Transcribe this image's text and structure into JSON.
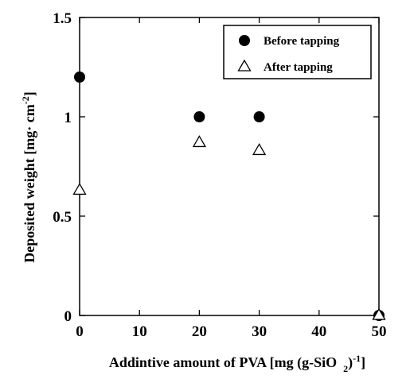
{
  "chart_data": {
    "type": "scatter",
    "title": "",
    "xlabel": "Addintive amount of PVA  [mg  (g-SiO",
    "xlabel_sub": "2",
    "xlabel_close": ")",
    "xlabel_sup": "-1",
    "xlabel_end": "]",
    "ylabel": "Deposited weight  [mg· cm",
    "ylabel_sup": "-2",
    "ylabel_end": "]",
    "xlim": [
      0,
      50
    ],
    "ylim": [
      0,
      1.5
    ],
    "x_ticks": [
      0,
      10,
      20,
      30,
      40,
      50
    ],
    "y_ticks": [
      0,
      0.5,
      1,
      1.5
    ],
    "x_tick_labels": [
      "0",
      "10",
      "20",
      "30",
      "40",
      "50"
    ],
    "y_tick_labels": [
      "0",
      "0.5",
      "1",
      "1.5"
    ],
    "grid": false,
    "legend_position": "top-right",
    "series": [
      {
        "name": "Before tapping",
        "marker": "filled-circle",
        "color": "#000000",
        "x": [
          0,
          20,
          30,
          50
        ],
        "y": [
          1.2,
          1.0,
          1.0,
          0.0
        ]
      },
      {
        "name": "After tapping",
        "marker": "open-triangle",
        "color": "#000000",
        "x": [
          0,
          20,
          30,
          50
        ],
        "y": [
          0.63,
          0.87,
          0.83,
          0.0
        ]
      }
    ]
  }
}
